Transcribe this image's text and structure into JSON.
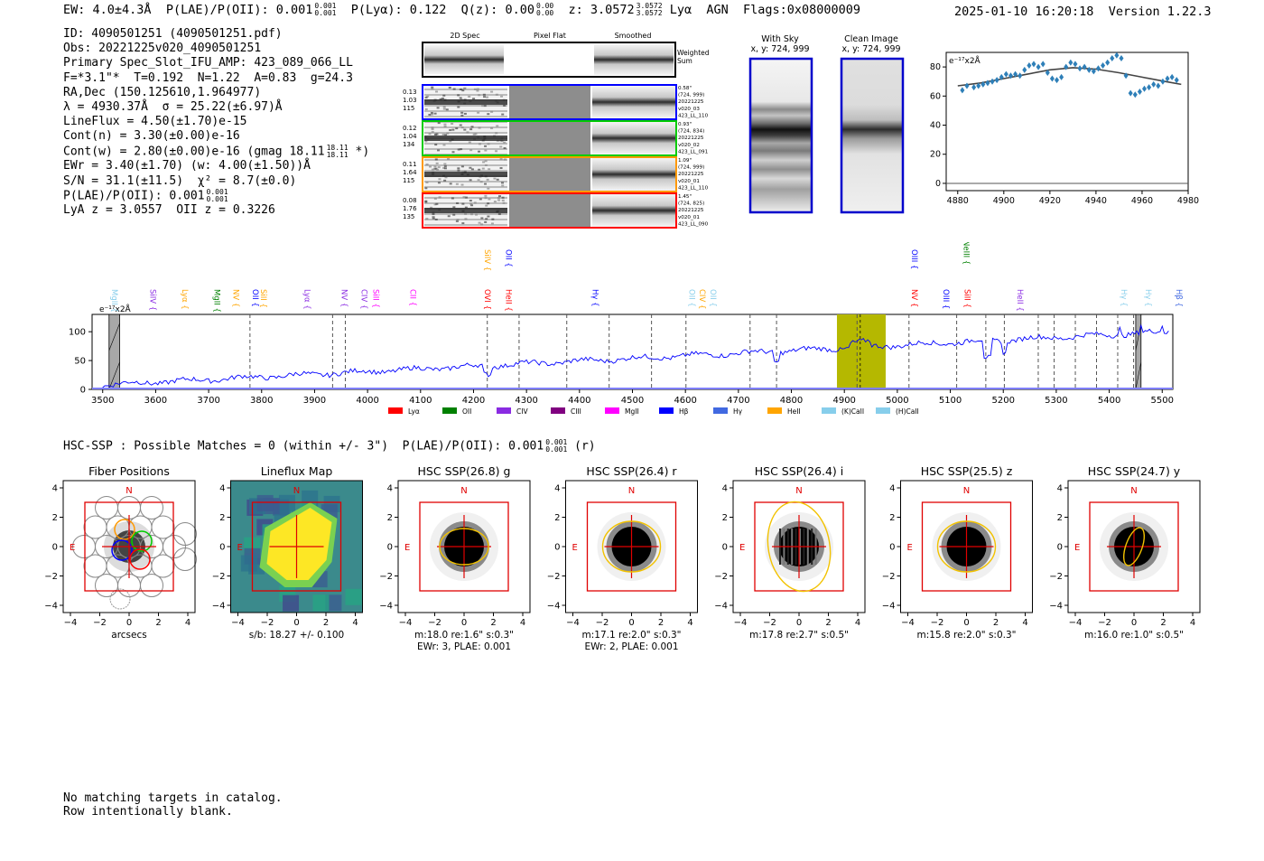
{
  "header": {
    "ew": "EW: 4.0±4.3Å",
    "plae": "P(LAE)/P(OII): 0.001",
    "plae_hi": "0.001",
    "plae_lo": "0.001",
    "plya": "P(Lyα): 0.122",
    "qz": "Q(z): 0.00",
    "qz_hi": "0.00",
    "qz_lo": "0.00",
    "z": "z: 3.0572",
    "z_hi": "3.0572",
    "z_lo": "3.0572",
    "line": "Lyα",
    "agn": "AGN",
    "flags": "Flags:0x08000009",
    "timestamp": "2025-01-10 16:20:18",
    "version": "Version 1.22.3"
  },
  "info": {
    "id": "ID: 4090501251 (4090501251.pdf)",
    "obs": "Obs: 20221225v020_4090501251",
    "primary": "Primary Spec_Slot_IFU_AMP: 423_089_066_LL",
    "fwhm": "F=*3.1\"*  T=0.192  N=1.22  A=0.83  g=24.3",
    "radec": "RA,Dec (150.125610,1.964977)",
    "wave": "λ = 4930.37Å  σ = 25.22(±6.97)Å",
    "lineflux": "LineFlux = 4.50(±1.70)e-15",
    "contn": "Cont(n) = 3.30(±0.00)e-16",
    "contw": "Cont(w) = 2.80(±0.00)e-16 (gmag 18.11",
    "contw_hi": "18.11",
    "contw_lo": "18.11",
    "contw_end": " *)",
    "ewr": "EWr = 3.40(±1.70) (w: 4.00(±1.50))Å",
    "sn": "S/N = 31.1(±11.5)  χ² = 8.7(±0.0)",
    "plae": "P(LAE)/P(OII): 0.001",
    "plae_hi": "0.001",
    "plae_lo": "0.001",
    "lyaz": "LyA z = 3.0557  OII z = 0.3226"
  },
  "cutouts": {
    "col_headers": [
      "2D Spec",
      "Pixel Flat",
      "Smoothed"
    ],
    "weighted_sum": [
      "Weighted",
      "Sum"
    ],
    "rows": [
      {
        "color": "#0000ff",
        "left": [
          "0.13",
          "1.03",
          "115"
        ],
        "right": [
          "0.58\"",
          "(724, 999)",
          "20221225",
          "v020_03",
          "423_LL_110"
        ]
      },
      {
        "color": "#00cc00",
        "left": [
          "0.12",
          "1.04",
          "134"
        ],
        "right": [
          "0.93\"",
          "(724, 834)",
          "20221225",
          "v020_02",
          "423_LL_091"
        ]
      },
      {
        "color": "#ff9900",
        "left": [
          "0.11",
          "1.64",
          "115"
        ],
        "right": [
          "1.09\"",
          "(724, 999)",
          "20221225",
          "v020_01",
          "423_LL_110"
        ]
      },
      {
        "color": "#ff0000",
        "left": [
          "0.08",
          "1.76",
          "135"
        ],
        "right": [
          "1.45\"",
          "(724, 825)",
          "20221225",
          "v020_01",
          "423_LL_090"
        ]
      }
    ]
  },
  "sky": {
    "with_sky": "With Sky",
    "with_sky_xy": "x, y: 724, 999",
    "clean": "Clean Image",
    "clean_xy": "x, y: 724, 999"
  },
  "chart_data": [
    {
      "type": "scatter",
      "title": "",
      "ylabel": "e⁻¹⁷x2Å",
      "xlim": [
        4875,
        4980
      ],
      "ylim": [
        -5,
        90
      ],
      "xticks": [
        4880,
        4900,
        4920,
        4940,
        4960,
        4980
      ],
      "yticks": [
        0,
        20,
        40,
        60,
        80
      ],
      "points_x": [
        4882,
        4884,
        4887,
        4889,
        4891,
        4893,
        4895,
        4897,
        4899,
        4901,
        4903,
        4905,
        4907,
        4909,
        4911,
        4913,
        4915,
        4917,
        4919,
        4921,
        4923,
        4925,
        4927,
        4929,
        4931,
        4933,
        4935,
        4937,
        4939,
        4941,
        4943,
        4945,
        4947,
        4949,
        4951,
        4953,
        4955,
        4957,
        4959,
        4961,
        4963,
        4965,
        4967,
        4969,
        4971,
        4973,
        4975
      ],
      "points_y": [
        64,
        67,
        66,
        67,
        68,
        69,
        70,
        71,
        73,
        75,
        74,
        75,
        74,
        78,
        81,
        82,
        80,
        82,
        76,
        72,
        71,
        73,
        80,
        83,
        82,
        79,
        80,
        78,
        77,
        79,
        81,
        83,
        86,
        88,
        86,
        74,
        62,
        61,
        63,
        65,
        66,
        68,
        67,
        70,
        72,
        73,
        71
      ],
      "fit_x": [
        4880,
        4890,
        4900,
        4910,
        4920,
        4930,
        4940,
        4950,
        4960,
        4970,
        4977
      ],
      "fit_y": [
        67,
        69,
        72,
        75,
        78,
        79.5,
        78.5,
        76,
        73,
        70,
        68
      ]
    },
    {
      "type": "line",
      "ylabel": "e⁻¹⁷x2Å",
      "xlim": [
        3480,
        5520
      ],
      "ylim": [
        0,
        130
      ],
      "xticks": [
        3500,
        3600,
        3700,
        3800,
        3900,
        4000,
        4100,
        4200,
        4300,
        4400,
        4500,
        4600,
        4700,
        4800,
        4900,
        5000,
        5100,
        5200,
        5300,
        5400,
        5500
      ],
      "yticks": [
        0,
        50,
        100
      ],
      "series": [
        {
          "name": "spectrum",
          "color": "#0000ff"
        }
      ],
      "highlight": {
        "from": 4886,
        "to": 4978,
        "center": 4930,
        "color": "#b5b800"
      },
      "hatched": [
        [
          3512,
          3532
        ],
        [
          5450,
          5460
        ]
      ],
      "dashed_x": [
        3778,
        3934,
        3958,
        4226,
        4286,
        4376,
        4456,
        4536,
        4601,
        4722,
        4772,
        4924,
        5022,
        5112,
        5167,
        5202,
        5266,
        5296,
        5336,
        5376,
        5416,
        5446
      ],
      "line_labels": [
        {
          "text": "MgII",
          "x": 3512,
          "color": "#87ceeb",
          "tier": 2
        },
        {
          "text": "SiIV",
          "x": 3585,
          "color": "#8a2be2",
          "tier": 2
        },
        {
          "text": "Lyα",
          "x": 3645,
          "color": "#ffa500",
          "tier": 2
        },
        {
          "text": "MgII",
          "x": 3706,
          "color": "#008000",
          "tier": 2
        },
        {
          "text": "NV",
          "x": 3742,
          "color": "#ffa500",
          "tier": 2
        },
        {
          "text": "SiII",
          "x": 3794,
          "color": "#ffa500",
          "tier": 2
        },
        {
          "text": "OII",
          "x": 3778,
          "color": "#0000ff",
          "tier": 2
        },
        {
          "text": "Lyα",
          "x": 3876,
          "color": "#8a2be2",
          "tier": 2
        },
        {
          "text": "NV",
          "x": 3946,
          "color": "#8a2be2",
          "tier": 2
        },
        {
          "text": "CIV",
          "x": 3984,
          "color": "#8a2be2",
          "tier": 2
        },
        {
          "text": "SiII",
          "x": 4006,
          "color": "#ff00ff",
          "tier": 2
        },
        {
          "text": "CII",
          "x": 4076,
          "color": "#ff00ff",
          "tier": 2
        },
        {
          "text": "OVI",
          "x": 4216,
          "color": "#ff0000",
          "tier": 2
        },
        {
          "text": "HeII",
          "x": 4256,
          "color": "#ff0000",
          "tier": 2
        },
        {
          "text": "SiIV",
          "x": 4216,
          "color": "#ffa500",
          "tier": 0
        },
        {
          "text": "OII",
          "x": 4256,
          "color": "#0000ff",
          "tier": 0
        },
        {
          "text": "Hγ",
          "x": 4420,
          "color": "#0000ff",
          "tier": 2
        },
        {
          "text": "OII",
          "x": 4602,
          "color": "#87ceeb",
          "tier": 2
        },
        {
          "text": "CIV",
          "x": 4622,
          "color": "#ffa500",
          "tier": 2
        },
        {
          "text": "OII",
          "x": 4642,
          "color": "#87ceeb",
          "tier": 2
        },
        {
          "text": "OIII",
          "x": 5022,
          "color": "#0000ff",
          "tier": 0
        },
        {
          "text": "NeIII",
          "x": 5120,
          "color": "#008000",
          "tier": -1
        },
        {
          "text": "NV",
          "x": 5022,
          "color": "#ff0000",
          "tier": 2
        },
        {
          "text": "OIII",
          "x": 5082,
          "color": "#0000ff",
          "tier": 2
        },
        {
          "text": "SiII",
          "x": 5122,
          "color": "#ff0000",
          "tier": 2
        },
        {
          "text": "HeII",
          "x": 5222,
          "color": "#8a2be2",
          "tier": 2
        },
        {
          "text": "Hγ",
          "x": 5418,
          "color": "#87ceeb",
          "tier": 2
        },
        {
          "text": "Hγ",
          "x": 5464,
          "color": "#87ceeb",
          "tier": 2
        },
        {
          "text": "Hβ",
          "x": 5522,
          "color": "#4169e1",
          "tier": 2
        }
      ],
      "legend": [
        {
          "label": "Lyα",
          "color": "#ff0000"
        },
        {
          "label": "OII",
          "color": "#008000"
        },
        {
          "label": "CIV",
          "color": "#8a2be2"
        },
        {
          "label": "CIII",
          "color": "#800080"
        },
        {
          "label": "MgII",
          "color": "#ff00ff"
        },
        {
          "label": "Hβ",
          "color": "#0000ff"
        },
        {
          "label": "Hγ",
          "color": "#4169e1"
        },
        {
          "label": "HeII",
          "color": "#ffa500"
        },
        {
          "label": "(K)CaII",
          "color": "#87ceeb"
        },
        {
          "label": "(H)CaII",
          "color": "#87ceeb"
        }
      ]
    }
  ],
  "hsc": {
    "line": "HSC-SSP : Possible Matches = 0 (within +/- 3\")  P(LAE)/P(OII): 0.001",
    "line_hi": "0.001",
    "line_lo": "0.001",
    "line_end": " (r)",
    "panels": [
      {
        "title": "Fiber Positions",
        "caption1": "arcsecs",
        "caption2": "",
        "kind": "fiber"
      },
      {
        "title": "Lineflux Map",
        "caption1": "s/b: 18.27 +/- 0.100",
        "caption2": "",
        "kind": "lineflux"
      },
      {
        "title": "HSC SSP(26.8) g",
        "caption1": "m:18.0  re:1.6\"  s:0.3\"",
        "caption2": "EWr: 3, PLAE: 0.001",
        "kind": "g",
        "ellipse": [
          27,
          20,
          0
        ]
      },
      {
        "title": "HSC SSP(26.4) r",
        "caption1": "m:17.1  re:2.0\"  s:0.3\"",
        "caption2": "EWr: 2, PLAE: 0.001",
        "kind": "r",
        "ellipse": [
          32,
          28,
          0
        ]
      },
      {
        "title": "HSC SSP(26.4) i",
        "caption1": "m:17.8  re:2.7\"  s:0.5\"",
        "caption2": "",
        "kind": "i",
        "ellipse": [
          34,
          50,
          -10
        ]
      },
      {
        "title": "HSC SSP(25.5) z",
        "caption1": "m:15.8  re:2.0\"  s:0.3\"",
        "caption2": "",
        "kind": "z",
        "ellipse": [
          32,
          28,
          0
        ]
      },
      {
        "title": "HSC SSP(24.7) y",
        "caption1": "m:16.0  re:1.0\"  s:0.5\"",
        "caption2": "",
        "kind": "y",
        "ellipse": [
          9,
          22,
          20
        ]
      }
    ],
    "axis_ticks": [
      "−4",
      "−2",
      "0",
      "2",
      "4"
    ],
    "north": "N",
    "east": "E"
  },
  "footer": {
    "line1": "No matching targets in catalog.",
    "line2": "Row intentionally blank."
  }
}
